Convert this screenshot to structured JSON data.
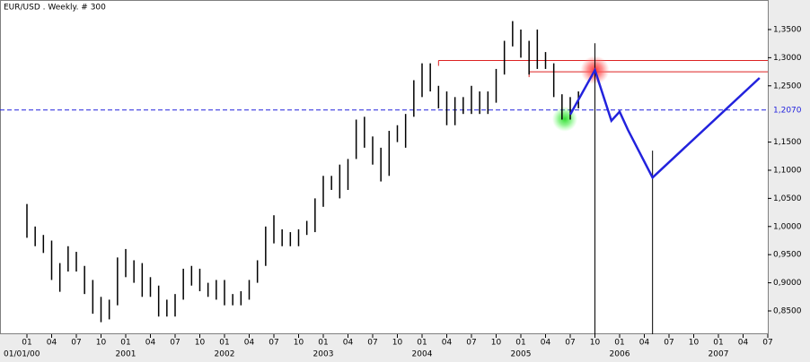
{
  "chart_data": {
    "type": "ohlc",
    "title": "EUR/USD . Weekly. # 300",
    "start_label": "01/01/00",
    "x": [
      "2000-01",
      "2000-02",
      "2000-03",
      "2000-04",
      "2000-05",
      "2000-06",
      "2000-07",
      "2000-08",
      "2000-09",
      "2000-10",
      "2000-11",
      "2000-12",
      "2001-01",
      "2001-02",
      "2001-03",
      "2001-04",
      "2001-05",
      "2001-06",
      "2001-07",
      "2001-08",
      "2001-09",
      "2001-10",
      "2001-11",
      "2001-12",
      "2002-01",
      "2002-02",
      "2002-03",
      "2002-04",
      "2002-05",
      "2002-06",
      "2002-07",
      "2002-08",
      "2002-09",
      "2002-10",
      "2002-11",
      "2002-12",
      "2003-01",
      "2003-02",
      "2003-03",
      "2003-04",
      "2003-05",
      "2003-06",
      "2003-07",
      "2003-08",
      "2003-09",
      "2003-10",
      "2003-11",
      "2003-12",
      "2004-01",
      "2004-02",
      "2004-03",
      "2004-04",
      "2004-05",
      "2004-06",
      "2004-07",
      "2004-08",
      "2004-09",
      "2004-10",
      "2004-11",
      "2004-12",
      "2005-01",
      "2005-02",
      "2005-03",
      "2005-04",
      "2005-05",
      "2005-06",
      "2005-07",
      "2005-08"
    ],
    "high": [
      1.04,
      1.0,
      0.985,
      0.975,
      0.935,
      0.965,
      0.955,
      0.93,
      0.905,
      0.875,
      0.87,
      0.945,
      0.96,
      0.94,
      0.935,
      0.91,
      0.895,
      0.87,
      0.88,
      0.925,
      0.93,
      0.925,
      0.9,
      0.905,
      0.905,
      0.88,
      0.885,
      0.905,
      0.94,
      1.0,
      1.02,
      0.995,
      0.99,
      0.995,
      1.01,
      1.05,
      1.09,
      1.09,
      1.11,
      1.12,
      1.19,
      1.195,
      1.16,
      1.14,
      1.17,
      1.18,
      1.2,
      1.26,
      1.29,
      1.29,
      1.25,
      1.24,
      1.23,
      1.23,
      1.25,
      1.24,
      1.24,
      1.28,
      1.33,
      1.365,
      1.35,
      1.33,
      1.35,
      1.31,
      1.29,
      1.235,
      1.23,
      1.24
    ],
    "low": [
      0.98,
      0.965,
      0.953,
      0.905,
      0.884,
      0.92,
      0.92,
      0.88,
      0.845,
      0.83,
      0.835,
      0.86,
      0.91,
      0.9,
      0.875,
      0.875,
      0.84,
      0.84,
      0.84,
      0.87,
      0.895,
      0.885,
      0.875,
      0.87,
      0.86,
      0.86,
      0.86,
      0.87,
      0.9,
      0.93,
      0.97,
      0.965,
      0.965,
      0.965,
      0.985,
      0.99,
      1.035,
      1.065,
      1.05,
      1.065,
      1.12,
      1.14,
      1.11,
      1.08,
      1.09,
      1.15,
      1.14,
      1.195,
      1.23,
      1.24,
      1.21,
      1.18,
      1.18,
      1.2,
      1.2,
      1.2,
      1.2,
      1.22,
      1.27,
      1.32,
      1.3,
      1.27,
      1.28,
      1.28,
      1.23,
      1.19,
      1.19,
      1.21
    ],
    "color": "#000000",
    "projection": {
      "color": "#2222dd",
      "x": [
        "2005-07",
        "2005-10",
        "2005-12",
        "2006-01",
        "2006-02",
        "2006-05",
        "2007-06"
      ],
      "y": [
        1.199,
        1.278,
        1.188,
        1.204,
        1.172,
        1.087,
        1.264
      ]
    },
    "reference_line": {
      "value": 1.207,
      "label": "1,2070",
      "color": "#2222dd"
    },
    "resistance_lines": [
      {
        "value": 1.295,
        "start": "2004-03",
        "color": "#dd2222"
      },
      {
        "value": 1.275,
        "start": "2005-02",
        "color": "#dd2222"
      }
    ],
    "vertical_lines": [
      "2005-10",
      "2006-05"
    ],
    "xlim": [
      "2000-01",
      "2007-07"
    ],
    "ylim": [
      0.8086,
      1.4025
    ],
    "yticks": [
      {
        "value": 0.85,
        "label": "0,8500"
      },
      {
        "value": 0.9,
        "label": "0,9000"
      },
      {
        "value": 0.95,
        "label": "0,9500"
      },
      {
        "value": 1.0,
        "label": "1,0000"
      },
      {
        "value": 1.05,
        "label": "1,0500"
      },
      {
        "value": 1.1,
        "label": "1,1000"
      },
      {
        "value": 1.15,
        "label": "1,1500"
      },
      {
        "value": 1.25,
        "label": "1,2500"
      },
      {
        "value": 1.3,
        "label": "1,3000"
      },
      {
        "value": 1.35,
        "label": "1,3500"
      }
    ],
    "xticks": [
      {
        "value": "2000-01",
        "label": "01"
      },
      {
        "value": "2000-04",
        "label": "04"
      },
      {
        "value": "2000-07",
        "label": "07"
      },
      {
        "value": "2000-10",
        "label": "10"
      },
      {
        "value": "2001-01",
        "label": "01"
      },
      {
        "value": "2001-04",
        "label": "04"
      },
      {
        "value": "2001-07",
        "label": "07"
      },
      {
        "value": "2001-10",
        "label": "10"
      },
      {
        "value": "2002-01",
        "label": "01"
      },
      {
        "value": "2002-04",
        "label": "04"
      },
      {
        "value": "2002-07",
        "label": "07"
      },
      {
        "value": "2002-10",
        "label": "10"
      },
      {
        "value": "2003-01",
        "label": "01"
      },
      {
        "value": "2003-04",
        "label": "04"
      },
      {
        "value": "2003-07",
        "label": "07"
      },
      {
        "value": "2003-10",
        "label": "10"
      },
      {
        "value": "2004-01",
        "label": "01"
      },
      {
        "value": "2004-04",
        "label": "04"
      },
      {
        "value": "2004-07",
        "label": "07"
      },
      {
        "value": "2004-10",
        "label": "10"
      },
      {
        "value": "2005-01",
        "label": "01"
      },
      {
        "value": "2005-04",
        "label": "04"
      },
      {
        "value": "2005-07",
        "label": "07"
      },
      {
        "value": "2005-10",
        "label": "10"
      },
      {
        "value": "2006-01",
        "label": "01"
      },
      {
        "value": "2006-04",
        "label": "04"
      },
      {
        "value": "2006-07",
        "label": "07"
      },
      {
        "value": "2006-10",
        "label": "10"
      },
      {
        "value": "2007-01",
        "label": "01"
      },
      {
        "value": "2007-04",
        "label": "04"
      },
      {
        "value": "2007-07",
        "label": "07"
      }
    ],
    "year_ticks": [
      {
        "value": "2001-01",
        "label": "2001"
      },
      {
        "value": "2002-01",
        "label": "2002"
      },
      {
        "value": "2003-01",
        "label": "2003"
      },
      {
        "value": "2004-01",
        "label": "2004"
      },
      {
        "value": "2005-01",
        "label": "2005"
      },
      {
        "value": "2006-01",
        "label": "2006"
      },
      {
        "value": "2007-01",
        "label": "2007"
      }
    ]
  }
}
